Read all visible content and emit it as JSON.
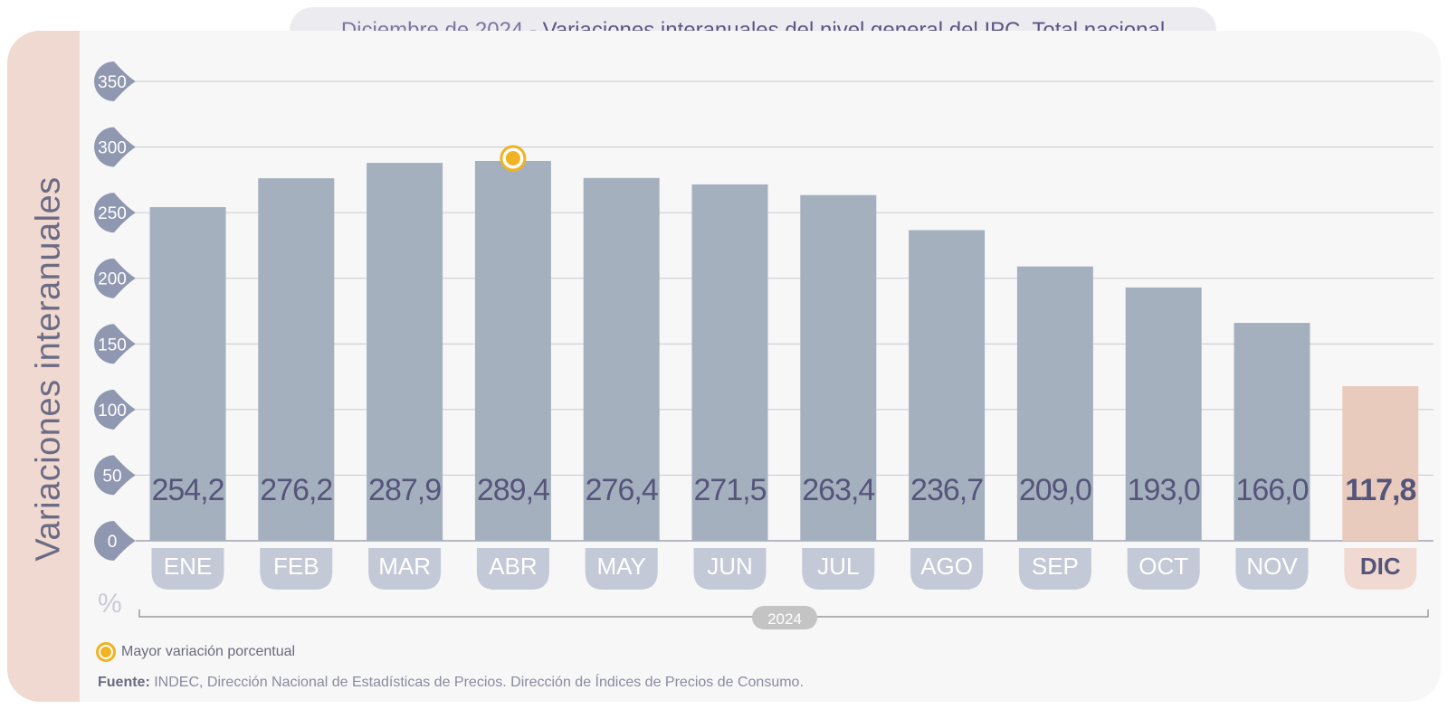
{
  "title": {
    "date": "Diciembre de 2024",
    "separator": " - ",
    "main": "Variaciones interanuales del nivel general del IPC. Total nacional"
  },
  "y_axis_label": "Variaciones interanuales",
  "unit": "%",
  "legend": {
    "label": "Mayor variación porcentual",
    "marker_color": "#f0b323"
  },
  "source": {
    "label": "Fuente:",
    "text": " INDEC, Dirección Nacional de Estadísticas de Precios. Dirección de Índices de Precios de Consumo."
  },
  "colors": {
    "bar": "#a5b0bf",
    "bar_highlight": "#e9cbbd",
    "tick_badge": "#8f98b0",
    "month_badge": "#c3c9d6",
    "month_badge_highlight": "#f0d9d0",
    "value_text": "#55557a",
    "year_badge": "#c4c4c4"
  },
  "chart_data": {
    "type": "bar",
    "categories": [
      "ENE",
      "FEB",
      "MAR",
      "ABR",
      "MAY",
      "JUN",
      "JUL",
      "AGO",
      "SEP",
      "OCT",
      "NOV",
      "DIC"
    ],
    "values": [
      254.2,
      276.2,
      287.9,
      289.4,
      276.4,
      271.5,
      263.4,
      236.7,
      209.0,
      193.0,
      166.0,
      117.8
    ],
    "value_labels": [
      "254,2",
      "276,2",
      "287,9",
      "289,4",
      "276,4",
      "271,5",
      "263,4",
      "236,7",
      "209,0",
      "193,0",
      "166,0",
      "117,8"
    ],
    "highlight_index": 11,
    "max_marker_index": 3,
    "ylim": [
      0,
      350
    ],
    "yticks": [
      0,
      50,
      100,
      150,
      200,
      250,
      300,
      350
    ],
    "xgroup_label": "2024",
    "grid": true
  }
}
